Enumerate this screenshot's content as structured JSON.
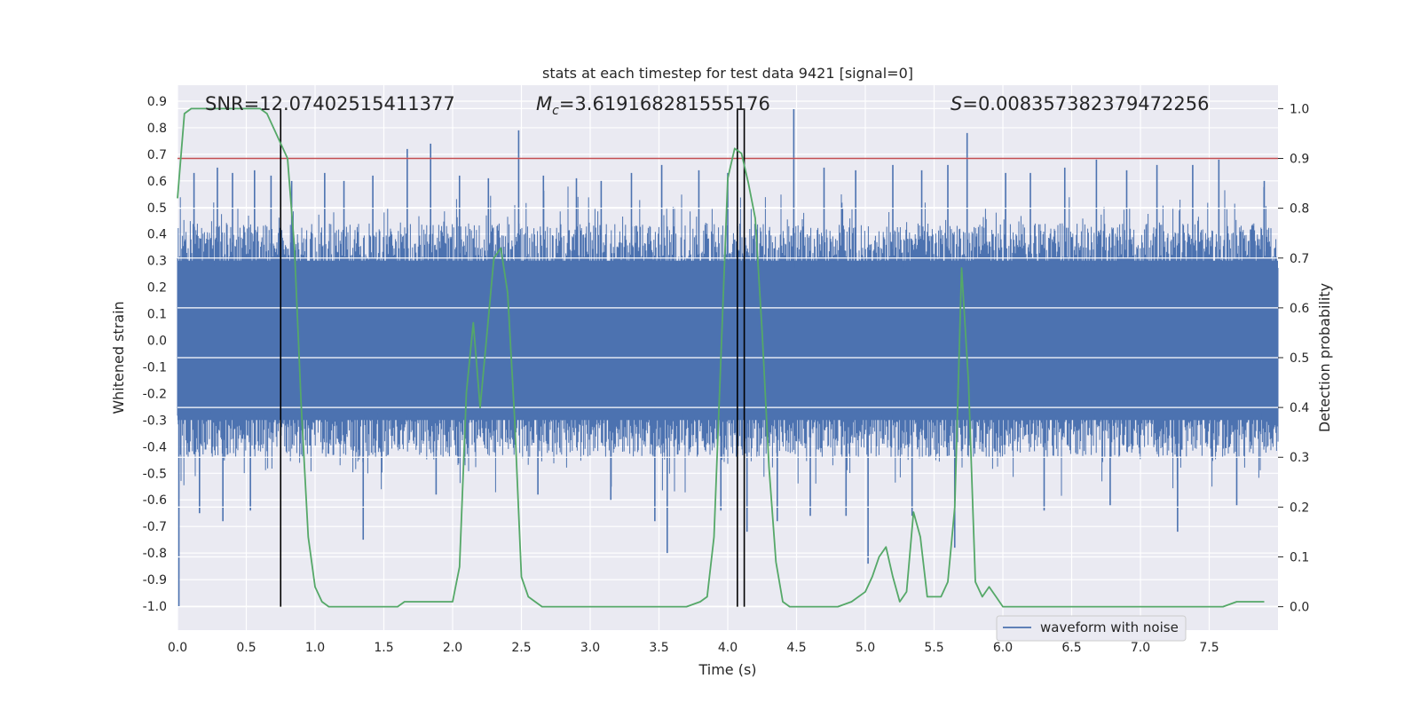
{
  "chart_data": {
    "type": "line",
    "title": "stats at each timestep for test data 9421 [signal=0]",
    "xlabel": "Time (s)",
    "ylabel_left": "Whitened strain",
    "ylabel_right": "Detection probability",
    "xlim": [
      0.0,
      8.0
    ],
    "ylim_left": [
      -1.09,
      0.96
    ],
    "ylim_right": [
      -0.047,
      1.047
    ],
    "xticks": [
      "0.0",
      "0.5",
      "1.0",
      "1.5",
      "2.0",
      "2.5",
      "3.0",
      "3.5",
      "4.0",
      "4.5",
      "5.0",
      "5.5",
      "6.0",
      "6.5",
      "7.0",
      "7.5"
    ],
    "yticks_left": [
      "0.9",
      "0.8",
      "0.7",
      "0.6",
      "0.5",
      "0.4",
      "0.3",
      "0.2",
      "0.1",
      "0.0",
      "-0.1",
      "-0.2",
      "-0.3",
      "-0.4",
      "-0.5",
      "-0.6",
      "-0.7",
      "-0.8",
      "-0.9",
      "-1.0"
    ],
    "yticks_right": [
      "1.0",
      "0.9",
      "0.8",
      "0.7",
      "0.6",
      "0.5",
      "0.4",
      "0.3",
      "0.2",
      "0.1",
      "0.0"
    ],
    "grid": true,
    "legend": {
      "position": "lower-right",
      "entries": [
        "waveform with noise"
      ]
    },
    "annotations": {
      "snr": "SNR=12.07402515411377",
      "mc_symbol": "M",
      "mc_sub": "c",
      "mc_value": "=3.619168281555176",
      "s_symbol": "S",
      "s_value": "=0.008357382379472256"
    },
    "threshold": {
      "name": "threshold",
      "value": 0.9,
      "axis": "right",
      "color": "#c44e52"
    },
    "vlines": [
      0.75,
      4.07,
      4.12
    ],
    "waveform": {
      "name": "waveform with noise",
      "color": "#4c72b0",
      "core_range": [
        -0.3,
        0.3
      ],
      "spikes": [
        {
          "t": 0.12,
          "v": 0.63
        },
        {
          "t": 0.29,
          "v": 0.65
        },
        {
          "t": 0.4,
          "v": 0.63
        },
        {
          "t": 0.56,
          "v": 0.64
        },
        {
          "t": 0.68,
          "v": 0.62
        },
        {
          "t": 0.83,
          "v": 0.6
        },
        {
          "t": 1.07,
          "v": 0.63
        },
        {
          "t": 1.21,
          "v": 0.6
        },
        {
          "t": 1.42,
          "v": 0.62
        },
        {
          "t": 1.67,
          "v": 0.72
        },
        {
          "t": 1.84,
          "v": 0.74
        },
        {
          "t": 2.05,
          "v": 0.62
        },
        {
          "t": 2.26,
          "v": 0.61
        },
        {
          "t": 2.48,
          "v": 0.79
        },
        {
          "t": 2.66,
          "v": 0.62
        },
        {
          "t": 2.9,
          "v": 0.61
        },
        {
          "t": 3.08,
          "v": 0.6
        },
        {
          "t": 3.3,
          "v": 0.63
        },
        {
          "t": 3.52,
          "v": 0.66
        },
        {
          "t": 3.79,
          "v": 0.64
        },
        {
          "t": 4.0,
          "v": 0.63
        },
        {
          "t": 4.48,
          "v": 0.87
        },
        {
          "t": 4.7,
          "v": 0.65
        },
        {
          "t": 4.93,
          "v": 0.64
        },
        {
          "t": 5.2,
          "v": 0.66
        },
        {
          "t": 5.41,
          "v": 0.64
        },
        {
          "t": 5.6,
          "v": 0.66
        },
        {
          "t": 5.74,
          "v": 0.78
        },
        {
          "t": 6.02,
          "v": 0.63
        },
        {
          "t": 6.2,
          "v": 0.63
        },
        {
          "t": 6.45,
          "v": 0.65
        },
        {
          "t": 6.68,
          "v": 0.68
        },
        {
          "t": 6.9,
          "v": 0.64
        },
        {
          "t": 7.12,
          "v": 0.66
        },
        {
          "t": 7.38,
          "v": 0.66
        },
        {
          "t": 7.57,
          "v": 0.68
        },
        {
          "t": 7.9,
          "v": 0.6
        },
        {
          "t": 0.01,
          "v": -1.0
        },
        {
          "t": 0.16,
          "v": -0.65
        },
        {
          "t": 0.33,
          "v": -0.68
        },
        {
          "t": 0.53,
          "v": -0.64
        },
        {
          "t": 1.35,
          "v": -0.75
        },
        {
          "t": 1.88,
          "v": -0.58
        },
        {
          "t": 2.62,
          "v": -0.58
        },
        {
          "t": 3.15,
          "v": -0.6
        },
        {
          "t": 3.47,
          "v": -0.68
        },
        {
          "t": 3.56,
          "v": -0.8
        },
        {
          "t": 3.95,
          "v": -0.64
        },
        {
          "t": 4.14,
          "v": -0.72
        },
        {
          "t": 4.36,
          "v": -0.68
        },
        {
          "t": 4.6,
          "v": -0.66
        },
        {
          "t": 4.86,
          "v": -0.66
        },
        {
          "t": 5.02,
          "v": -0.84
        },
        {
          "t": 5.34,
          "v": -0.66
        },
        {
          "t": 5.65,
          "v": -0.78
        },
        {
          "t": 6.3,
          "v": -0.64
        },
        {
          "t": 6.78,
          "v": -0.62
        },
        {
          "t": 7.27,
          "v": -0.72
        },
        {
          "t": 7.7,
          "v": -0.62
        }
      ]
    },
    "probability": {
      "name": "detection probability",
      "color": "#55a868",
      "x": [
        0.0,
        0.05,
        0.1,
        0.15,
        0.2,
        0.25,
        0.3,
        0.35,
        0.4,
        0.45,
        0.5,
        0.55,
        0.6,
        0.65,
        0.7,
        0.75,
        0.8,
        0.85,
        0.9,
        0.95,
        1.0,
        1.05,
        1.1,
        1.2,
        1.3,
        1.4,
        1.5,
        1.55,
        1.6,
        1.65,
        1.7,
        1.75,
        1.8,
        1.9,
        2.0,
        2.05,
        2.1,
        2.15,
        2.2,
        2.25,
        2.3,
        2.35,
        2.4,
        2.45,
        2.5,
        2.55,
        2.6,
        2.65,
        2.7,
        2.8,
        3.0,
        3.2,
        3.4,
        3.6,
        3.7,
        3.8,
        3.85,
        3.9,
        3.95,
        4.0,
        4.05,
        4.1,
        4.15,
        4.2,
        4.25,
        4.3,
        4.35,
        4.4,
        4.45,
        4.5,
        4.6,
        4.7,
        4.8,
        4.9,
        5.0,
        5.05,
        5.1,
        5.15,
        5.2,
        5.25,
        5.3,
        5.35,
        5.4,
        5.45,
        5.5,
        5.55,
        5.6,
        5.65,
        5.7,
        5.75,
        5.8,
        5.85,
        5.9,
        5.95,
        6.0,
        6.1,
        6.2,
        6.5,
        6.8,
        7.0,
        7.2,
        7.4,
        7.6,
        7.7,
        7.8,
        7.9
      ],
      "y": [
        0.82,
        0.99,
        1.0,
        1.0,
        1.0,
        1.0,
        1.0,
        1.0,
        1.0,
        1.0,
        1.0,
        1.0,
        1.0,
        0.99,
        0.96,
        0.93,
        0.9,
        0.72,
        0.4,
        0.14,
        0.04,
        0.01,
        0.0,
        0.0,
        0.0,
        0.0,
        0.0,
        0.0,
        0.0,
        0.01,
        0.01,
        0.01,
        0.01,
        0.01,
        0.01,
        0.08,
        0.43,
        0.57,
        0.4,
        0.55,
        0.7,
        0.72,
        0.63,
        0.38,
        0.06,
        0.02,
        0.01,
        0.0,
        0.0,
        0.0,
        0.0,
        0.0,
        0.0,
        0.0,
        0.0,
        0.01,
        0.02,
        0.14,
        0.5,
        0.86,
        0.92,
        0.91,
        0.85,
        0.78,
        0.55,
        0.28,
        0.09,
        0.01,
        0.0,
        0.0,
        0.0,
        0.0,
        0.0,
        0.01,
        0.03,
        0.06,
        0.1,
        0.12,
        0.06,
        0.01,
        0.03,
        0.19,
        0.14,
        0.02,
        0.02,
        0.02,
        0.05,
        0.2,
        0.68,
        0.45,
        0.05,
        0.02,
        0.04,
        0.02,
        0.0,
        0.0,
        0.0,
        0.0,
        0.0,
        0.0,
        0.0,
        0.0,
        0.0,
        0.01,
        0.01,
        0.01
      ]
    }
  }
}
